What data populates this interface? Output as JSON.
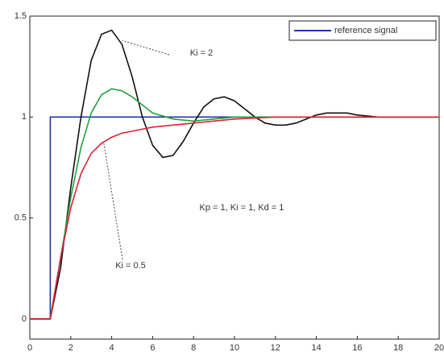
{
  "chart_data": {
    "type": "line",
    "xlim": [
      0,
      20
    ],
    "ylim": [
      -0.1,
      1.5
    ],
    "xticks": [
      0,
      2,
      4,
      6,
      8,
      10,
      12,
      14,
      16,
      18,
      20
    ],
    "yticks": [
      0,
      0.5,
      1,
      1.5
    ],
    "legend": "upper right",
    "annotations": [
      "Ki = 2",
      "Kp = 1, Ki = 1, Kd = 1",
      "Ki = 0.5"
    ],
    "series": [
      {
        "name": "reference signal",
        "color": "#2233aa",
        "x": [
          0,
          1,
          1,
          20
        ],
        "values": [
          0,
          0,
          1,
          1
        ]
      },
      {
        "color": "#111111",
        "x": [
          0,
          1,
          1.5,
          2,
          2.5,
          3,
          3.5,
          4,
          4.5,
          5,
          5.5,
          6,
          6.5,
          7,
          7.5,
          8,
          8.5,
          9,
          9.5,
          10,
          10.5,
          11,
          11.5,
          12,
          12.5,
          13,
          13.5,
          14,
          14.5,
          15,
          15.5,
          16,
          17,
          18,
          19,
          20
        ],
        "values": [
          0,
          0,
          0.25,
          0.65,
          1.0,
          1.28,
          1.41,
          1.43,
          1.36,
          1.2,
          1.0,
          0.86,
          0.8,
          0.81,
          0.88,
          0.97,
          1.05,
          1.09,
          1.1,
          1.08,
          1.04,
          1.0,
          0.97,
          0.96,
          0.96,
          0.97,
          0.99,
          1.01,
          1.02,
          1.02,
          1.02,
          1.01,
          1.0,
          1.0,
          1.0,
          1.0
        ]
      },
      {
        "color": "#22a040",
        "x": [
          0,
          1,
          1.5,
          2,
          2.5,
          3,
          3.5,
          4,
          4.5,
          5,
          5.5,
          6,
          7,
          8,
          9,
          10,
          12,
          14,
          16,
          18,
          20
        ],
        "values": [
          0,
          0,
          0.3,
          0.6,
          0.85,
          1.02,
          1.11,
          1.14,
          1.13,
          1.1,
          1.06,
          1.02,
          0.99,
          0.98,
          0.99,
          1.0,
          1.0,
          1.0,
          1.0,
          1.0,
          1.0
        ]
      },
      {
        "color": "#dd2233",
        "x": [
          0,
          1,
          1.5,
          2,
          2.5,
          3,
          3.5,
          4,
          4.5,
          5,
          5.5,
          6,
          7,
          8,
          9,
          10,
          12,
          14,
          16,
          18,
          20
        ],
        "values": [
          0,
          0,
          0.3,
          0.55,
          0.72,
          0.82,
          0.87,
          0.9,
          0.92,
          0.93,
          0.94,
          0.95,
          0.96,
          0.97,
          0.98,
          0.99,
          1.0,
          1.0,
          1.0,
          1.0,
          1.0
        ]
      }
    ]
  }
}
